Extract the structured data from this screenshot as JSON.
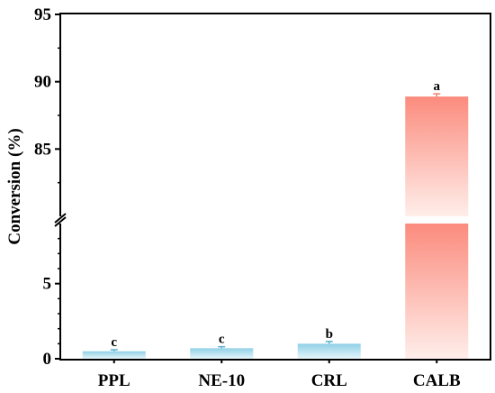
{
  "chart_data": {
    "type": "bar",
    "ylabel": "Conversion (%)",
    "categories": [
      "PPL",
      "NE-10",
      "CRL",
      "CALB"
    ],
    "values": [
      0.5,
      0.7,
      1.0,
      88.9
    ],
    "errors": [
      0.1,
      0.1,
      0.15,
      0.2
    ],
    "significance": [
      "c",
      "c",
      "b",
      "a"
    ],
    "axis_break": {
      "lower_range": [
        0,
        9
      ],
      "upper_range": [
        80,
        95
      ]
    },
    "lower_ticks": [
      0,
      5
    ],
    "upper_ticks": [
      85,
      90,
      95
    ],
    "colors": {
      "small_bar_top": "#8fd0e6",
      "small_bar_bottom": "#e6f6fb",
      "small_error": "#5ab0d0",
      "large_bar_top": "#fb8b7d",
      "large_bar_bottom": "#ffeeea",
      "large_error": "#f08070"
    }
  }
}
